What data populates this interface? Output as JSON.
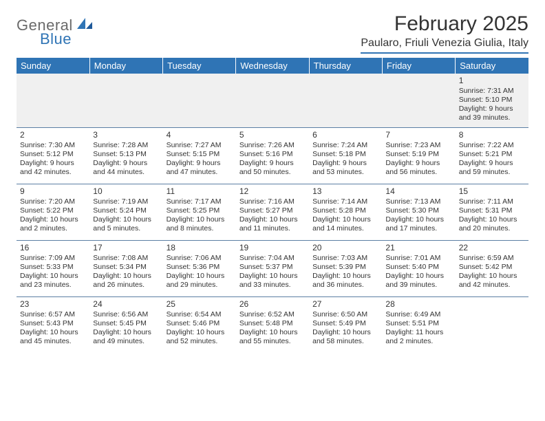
{
  "brand": {
    "line1": "General",
    "line2": "Blue"
  },
  "title": "February 2025",
  "location": "Paularo, Friuli Venezia Giulia, Italy",
  "colors": {
    "accent": "#2f74b5",
    "header_text": "#ffffff",
    "row_alt_bg": "#f0f0f0",
    "rule": "#5a7ea3",
    "text": "#333333"
  },
  "fonts": {
    "title_pt": 30,
    "location_pt": 16,
    "dayhead_pt": 13,
    "daynum_pt": 12,
    "cell_pt": 10.5
  },
  "day_headers": [
    "Sunday",
    "Monday",
    "Tuesday",
    "Wednesday",
    "Thursday",
    "Friday",
    "Saturday"
  ],
  "weeks": [
    [
      null,
      null,
      null,
      null,
      null,
      null,
      {
        "n": "1",
        "sr": "Sunrise: 7:31 AM",
        "ss": "Sunset: 5:10 PM",
        "d1": "Daylight: 9 hours",
        "d2": "and 39 minutes."
      }
    ],
    [
      {
        "n": "2",
        "sr": "Sunrise: 7:30 AM",
        "ss": "Sunset: 5:12 PM",
        "d1": "Daylight: 9 hours",
        "d2": "and 42 minutes."
      },
      {
        "n": "3",
        "sr": "Sunrise: 7:28 AM",
        "ss": "Sunset: 5:13 PM",
        "d1": "Daylight: 9 hours",
        "d2": "and 44 minutes."
      },
      {
        "n": "4",
        "sr": "Sunrise: 7:27 AM",
        "ss": "Sunset: 5:15 PM",
        "d1": "Daylight: 9 hours",
        "d2": "and 47 minutes."
      },
      {
        "n": "5",
        "sr": "Sunrise: 7:26 AM",
        "ss": "Sunset: 5:16 PM",
        "d1": "Daylight: 9 hours",
        "d2": "and 50 minutes."
      },
      {
        "n": "6",
        "sr": "Sunrise: 7:24 AM",
        "ss": "Sunset: 5:18 PM",
        "d1": "Daylight: 9 hours",
        "d2": "and 53 minutes."
      },
      {
        "n": "7",
        "sr": "Sunrise: 7:23 AM",
        "ss": "Sunset: 5:19 PM",
        "d1": "Daylight: 9 hours",
        "d2": "and 56 minutes."
      },
      {
        "n": "8",
        "sr": "Sunrise: 7:22 AM",
        "ss": "Sunset: 5:21 PM",
        "d1": "Daylight: 9 hours",
        "d2": "and 59 minutes."
      }
    ],
    [
      {
        "n": "9",
        "sr": "Sunrise: 7:20 AM",
        "ss": "Sunset: 5:22 PM",
        "d1": "Daylight: 10 hours",
        "d2": "and 2 minutes."
      },
      {
        "n": "10",
        "sr": "Sunrise: 7:19 AM",
        "ss": "Sunset: 5:24 PM",
        "d1": "Daylight: 10 hours",
        "d2": "and 5 minutes."
      },
      {
        "n": "11",
        "sr": "Sunrise: 7:17 AM",
        "ss": "Sunset: 5:25 PM",
        "d1": "Daylight: 10 hours",
        "d2": "and 8 minutes."
      },
      {
        "n": "12",
        "sr": "Sunrise: 7:16 AM",
        "ss": "Sunset: 5:27 PM",
        "d1": "Daylight: 10 hours",
        "d2": "and 11 minutes."
      },
      {
        "n": "13",
        "sr": "Sunrise: 7:14 AM",
        "ss": "Sunset: 5:28 PM",
        "d1": "Daylight: 10 hours",
        "d2": "and 14 minutes."
      },
      {
        "n": "14",
        "sr": "Sunrise: 7:13 AM",
        "ss": "Sunset: 5:30 PM",
        "d1": "Daylight: 10 hours",
        "d2": "and 17 minutes."
      },
      {
        "n": "15",
        "sr": "Sunrise: 7:11 AM",
        "ss": "Sunset: 5:31 PM",
        "d1": "Daylight: 10 hours",
        "d2": "and 20 minutes."
      }
    ],
    [
      {
        "n": "16",
        "sr": "Sunrise: 7:09 AM",
        "ss": "Sunset: 5:33 PM",
        "d1": "Daylight: 10 hours",
        "d2": "and 23 minutes."
      },
      {
        "n": "17",
        "sr": "Sunrise: 7:08 AM",
        "ss": "Sunset: 5:34 PM",
        "d1": "Daylight: 10 hours",
        "d2": "and 26 minutes."
      },
      {
        "n": "18",
        "sr": "Sunrise: 7:06 AM",
        "ss": "Sunset: 5:36 PM",
        "d1": "Daylight: 10 hours",
        "d2": "and 29 minutes."
      },
      {
        "n": "19",
        "sr": "Sunrise: 7:04 AM",
        "ss": "Sunset: 5:37 PM",
        "d1": "Daylight: 10 hours",
        "d2": "and 33 minutes."
      },
      {
        "n": "20",
        "sr": "Sunrise: 7:03 AM",
        "ss": "Sunset: 5:39 PM",
        "d1": "Daylight: 10 hours",
        "d2": "and 36 minutes."
      },
      {
        "n": "21",
        "sr": "Sunrise: 7:01 AM",
        "ss": "Sunset: 5:40 PM",
        "d1": "Daylight: 10 hours",
        "d2": "and 39 minutes."
      },
      {
        "n": "22",
        "sr": "Sunrise: 6:59 AM",
        "ss": "Sunset: 5:42 PM",
        "d1": "Daylight: 10 hours",
        "d2": "and 42 minutes."
      }
    ],
    [
      {
        "n": "23",
        "sr": "Sunrise: 6:57 AM",
        "ss": "Sunset: 5:43 PM",
        "d1": "Daylight: 10 hours",
        "d2": "and 45 minutes."
      },
      {
        "n": "24",
        "sr": "Sunrise: 6:56 AM",
        "ss": "Sunset: 5:45 PM",
        "d1": "Daylight: 10 hours",
        "d2": "and 49 minutes."
      },
      {
        "n": "25",
        "sr": "Sunrise: 6:54 AM",
        "ss": "Sunset: 5:46 PM",
        "d1": "Daylight: 10 hours",
        "d2": "and 52 minutes."
      },
      {
        "n": "26",
        "sr": "Sunrise: 6:52 AM",
        "ss": "Sunset: 5:48 PM",
        "d1": "Daylight: 10 hours",
        "d2": "and 55 minutes."
      },
      {
        "n": "27",
        "sr": "Sunrise: 6:50 AM",
        "ss": "Sunset: 5:49 PM",
        "d1": "Daylight: 10 hours",
        "d2": "and 58 minutes."
      },
      {
        "n": "28",
        "sr": "Sunrise: 6:49 AM",
        "ss": "Sunset: 5:51 PM",
        "d1": "Daylight: 11 hours",
        "d2": "and 2 minutes."
      },
      null
    ]
  ]
}
